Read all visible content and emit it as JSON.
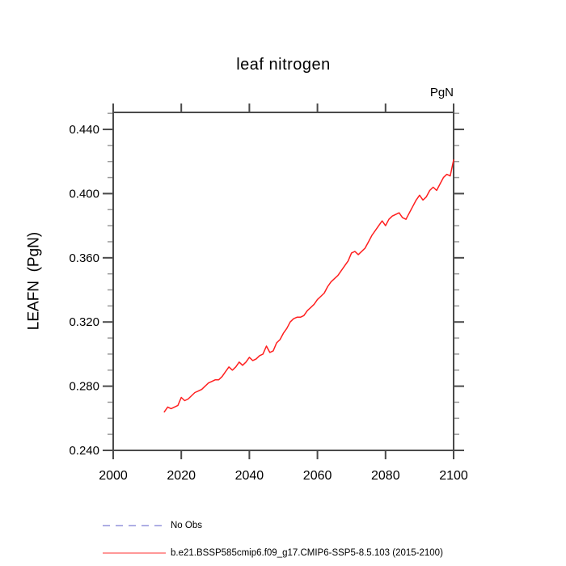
{
  "header": {
    "title": "leaf nitrogen",
    "units_label": "PgN"
  },
  "y_axis": {
    "title": "LEAFN  (PgN)"
  },
  "legend": {
    "items": [
      {
        "label": "No Obs",
        "color": "#9494dc",
        "line_style": "dashed"
      },
      {
        "label": "b.e21.BSSP585cmip6.f09_g17.CMIP6-SSP5-8.5.103 (2015-2100)",
        "color": "#ff5a5a",
        "line_style": "solid"
      }
    ]
  },
  "colors": {
    "axis": "#4a4a4a",
    "minor_tick": "#9a9a9a",
    "curve": "#ff1f1f",
    "text": "#000000",
    "background": "#ffffff"
  },
  "chart_data": {
    "type": "line",
    "title": "leaf nitrogen",
    "xlabel": "",
    "ylabel": "LEAFN (PgN)",
    "units": "PgN",
    "xlim": [
      2000,
      2100
    ],
    "ylim": [
      0.24,
      0.4506
    ],
    "x_ticks": [
      2000,
      2020,
      2040,
      2060,
      2080,
      2100
    ],
    "x_tick_labels": [
      "2000",
      "2020",
      "2040",
      "2060",
      "2080",
      "2100"
    ],
    "y_ticks": [
      0.24,
      0.28,
      0.32,
      0.36,
      0.4,
      0.44
    ],
    "y_tick_labels": [
      "0.240",
      "0.280",
      "0.320",
      "0.360",
      "0.400",
      "0.440"
    ],
    "y_minor_step": 0.01,
    "grid": false,
    "legend_position": "below",
    "series": [
      {
        "name": "b.e21.BSSP585cmip6.f09_g17.CMIP6-SSP5-8.5.103 (2015-2100)",
        "color": "#ff1f1f",
        "x": [
          2015,
          2016,
          2017,
          2018,
          2019,
          2020,
          2021,
          2022,
          2023,
          2024,
          2025,
          2026,
          2027,
          2028,
          2029,
          2030,
          2031,
          2032,
          2033,
          2034,
          2035,
          2036,
          2037,
          2038,
          2039,
          2040,
          2041,
          2042,
          2043,
          2044,
          2045,
          2046,
          2047,
          2048,
          2049,
          2050,
          2051,
          2052,
          2053,
          2054,
          2055,
          2056,
          2057,
          2058,
          2059,
          2060,
          2061,
          2062,
          2063,
          2064,
          2065,
          2066,
          2067,
          2068,
          2069,
          2070,
          2071,
          2072,
          2073,
          2074,
          2075,
          2076,
          2077,
          2078,
          2079,
          2080,
          2081,
          2082,
          2083,
          2084,
          2085,
          2086,
          2087,
          2088,
          2089,
          2090,
          2091,
          2092,
          2093,
          2094,
          2095,
          2096,
          2097,
          2098,
          2099,
          2100
        ],
        "y": [
          0.264,
          0.267,
          0.266,
          0.267,
          0.268,
          0.273,
          0.271,
          0.272,
          0.274,
          0.276,
          0.277,
          0.278,
          0.28,
          0.282,
          0.283,
          0.284,
          0.284,
          0.286,
          0.289,
          0.292,
          0.29,
          0.292,
          0.295,
          0.293,
          0.295,
          0.298,
          0.296,
          0.297,
          0.299,
          0.3,
          0.305,
          0.301,
          0.302,
          0.307,
          0.309,
          0.313,
          0.316,
          0.32,
          0.322,
          0.323,
          0.323,
          0.324,
          0.327,
          0.329,
          0.331,
          0.334,
          0.336,
          0.338,
          0.342,
          0.345,
          0.347,
          0.349,
          0.352,
          0.355,
          0.358,
          0.363,
          0.364,
          0.362,
          0.364,
          0.366,
          0.37,
          0.374,
          0.377,
          0.38,
          0.383,
          0.38,
          0.384,
          0.386,
          0.387,
          0.388,
          0.385,
          0.384,
          0.388,
          0.392,
          0.396,
          0.399,
          0.396,
          0.398,
          0.402,
          0.404,
          0.402,
          0.406,
          0.41,
          0.412,
          0.411,
          0.421
        ]
      },
      {
        "name": "No Obs",
        "color": "#9494dc",
        "x": [],
        "y": []
      }
    ]
  }
}
